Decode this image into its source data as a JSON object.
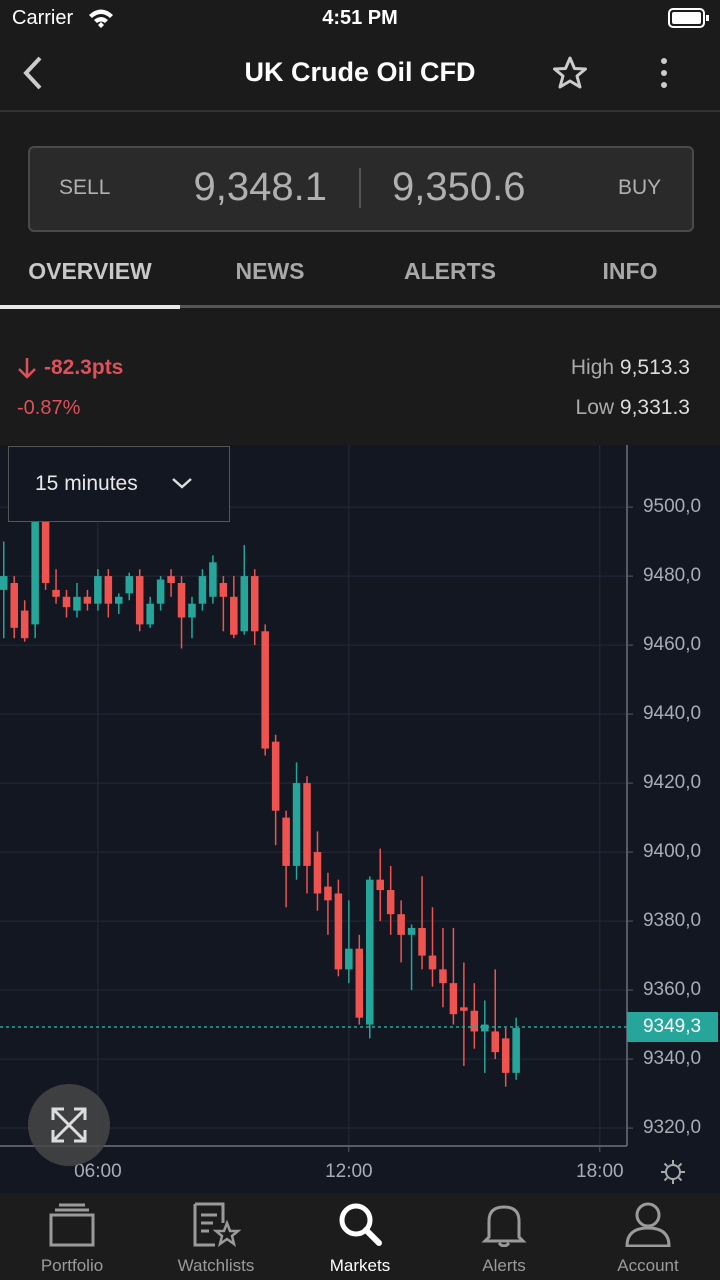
{
  "status_bar": {
    "carrier": "Carrier",
    "time": "4:51 PM"
  },
  "header": {
    "title": "UK Crude Oil CFD"
  },
  "prices": {
    "sell_label": "SELL",
    "sell": "9,348.1",
    "buy": "9,350.6",
    "buy_label": "BUY"
  },
  "tabs": [
    "OVERVIEW",
    "NEWS",
    "ALERTS",
    "INFO"
  ],
  "stats": {
    "change": "-82.3pts",
    "change_pct": "-0.87%",
    "high_label": "High",
    "high": "9,513.3",
    "low_label": "Low",
    "low": "9,331.3"
  },
  "interval": "15 minutes",
  "chart_data": {
    "type": "candlestick",
    "x": [
      3.75,
      4,
      4.25,
      4.5,
      4.75,
      5,
      5.25,
      5.5,
      5.75,
      6,
      6.25,
      6.5,
      6.75,
      7,
      7.25,
      7.5,
      7.75,
      8,
      8.25,
      8.5,
      8.75,
      9,
      9.25,
      9.5,
      9.75,
      10,
      10.25,
      10.5,
      10.75,
      11,
      11.25,
      11.5,
      11.75,
      12,
      12.25,
      12.5,
      12.75,
      13,
      13.25,
      13.5,
      13.75,
      14,
      14.25,
      14.5,
      14.75,
      15,
      15.25,
      15.5,
      15.75,
      16
    ],
    "open": [
      9476,
      9478,
      9470,
      9466,
      9496,
      9476,
      9474,
      9470,
      9474,
      9472,
      9480,
      9472,
      9475,
      9480,
      9466,
      9472,
      9480,
      9478,
      9468,
      9472,
      9474,
      9478,
      9474,
      9464,
      9480,
      9464,
      9432,
      9410,
      9396,
      9420,
      9400,
      9390,
      9388,
      9366,
      9372,
      9350,
      9392,
      9389,
      9382,
      9376,
      9378,
      9370,
      9366,
      9362,
      9355,
      9354,
      9348,
      9348,
      9346,
      9336
    ],
    "high": [
      9490,
      9480,
      9473,
      9498,
      9497,
      9482,
      9476,
      9478,
      9476,
      9482,
      9482,
      9475,
      9481,
      9482,
      9474,
      9480,
      9482,
      9480,
      9474,
      9482,
      9486,
      9480,
      9480,
      9489,
      9482,
      9466,
      9434,
      9412,
      9426,
      9422,
      9406,
      9394,
      9392,
      9386,
      9376,
      9393,
      9401,
      9396,
      9386,
      9379,
      9393,
      9384,
      9378,
      9378,
      9368,
      9362,
      9357,
      9366,
      9349,
      9352
    ],
    "low": [
      9462,
      9462,
      9461,
      9462,
      9476,
      9472,
      9468,
      9468,
      9470,
      9470,
      9468,
      9469,
      9473,
      9464,
      9465,
      9470,
      9474,
      9459,
      9462,
      9470,
      9472,
      9464,
      9462,
      9463,
      9460,
      9428,
      9402,
      9384,
      9392,
      9388,
      9383,
      9376,
      9364,
      9362,
      9350,
      9346,
      9380,
      9376,
      9368,
      9360,
      9366,
      9361,
      9355,
      9350,
      9338,
      9343,
      9336,
      9340,
      9332,
      9334
    ],
    "close": [
      9480,
      9465,
      9462,
      9496,
      9478,
      9474,
      9471,
      9474,
      9472,
      9480,
      9472,
      9474,
      9480,
      9466,
      9472,
      9479,
      9478,
      9468,
      9472,
      9480,
      9484,
      9474,
      9463,
      9480,
      9464,
      9430,
      9412,
      9396,
      9420,
      9396,
      9388,
      9386,
      9366,
      9372,
      9352,
      9392,
      9389,
      9382,
      9376,
      9378,
      9370,
      9366,
      9362,
      9353,
      9354,
      9348,
      9350,
      9342,
      9336,
      9349
    ],
    "up_color": "#26a69a",
    "down_color": "#ef5350",
    "xlim": [
      3.66,
      18.65
    ],
    "xticks": [
      {
        "value": 6,
        "label": "06:00"
      },
      {
        "value": 12,
        "label": "12:00"
      },
      {
        "value": 18,
        "label": "18:00"
      }
    ],
    "ylim": [
      9314.8,
      9518
    ],
    "yticks": [
      {
        "value": 9320,
        "label": "9320,0"
      },
      {
        "value": 9340,
        "label": "9340,0"
      },
      {
        "value": 9360,
        "label": "9360,0"
      },
      {
        "value": 9380,
        "label": "9380,0"
      },
      {
        "value": 9400,
        "label": "9400,0"
      },
      {
        "value": 9420,
        "label": "9420,0"
      },
      {
        "value": 9440,
        "label": "9440,0"
      },
      {
        "value": 9460,
        "label": "9460,0"
      },
      {
        "value": 9480,
        "label": "9480,0"
      },
      {
        "value": 9500,
        "label": "9500,0"
      }
    ],
    "last": {
      "value": 9349.3,
      "label": "9349,3"
    },
    "grid": true
  },
  "nav": [
    "Portfolio",
    "Watchlists",
    "Markets",
    "Alerts",
    "Account"
  ]
}
